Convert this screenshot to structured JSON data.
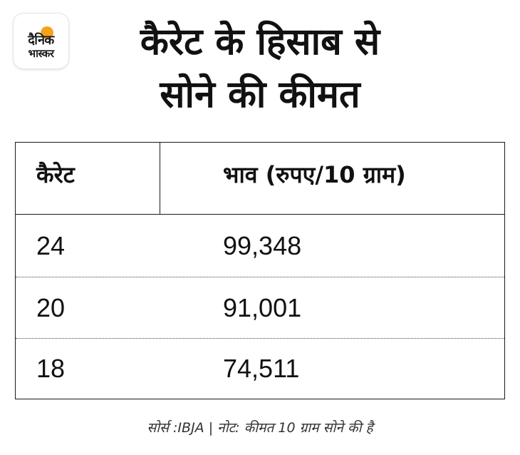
{
  "logo": {
    "line1": "दैनिक",
    "line2": "भास्कर",
    "accent_color": "#f5a21b"
  },
  "title": {
    "line1": "कैरेट के हिसाब से",
    "line2": "सोने की कीमत"
  },
  "table": {
    "headers": [
      "कैरेट",
      "भाव (रुपए/10 ग्राम)"
    ],
    "rows": [
      {
        "karat": "24",
        "price": "99,348"
      },
      {
        "karat": "20",
        "price": "91,001"
      },
      {
        "karat": "18",
        "price": "74,511"
      }
    ]
  },
  "source": "सोर्स :IBJA | नोट: कीमत 10 ग्राम सोने की है"
}
